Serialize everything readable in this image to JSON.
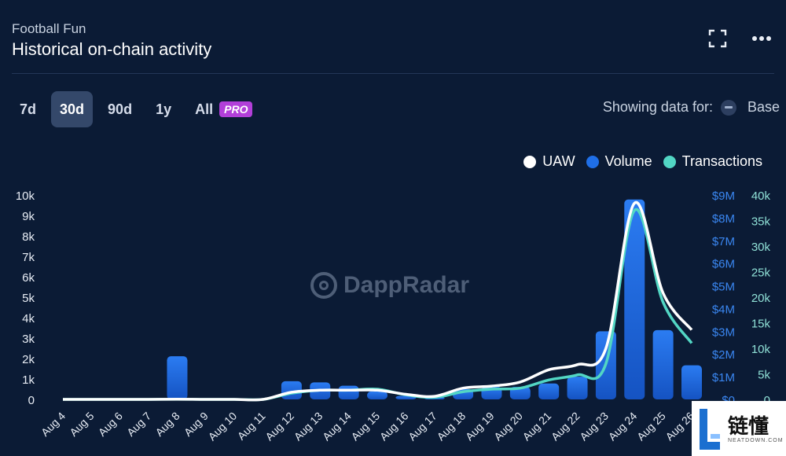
{
  "header": {
    "subtitle": "Football Fun",
    "title": "Historical on-chain activity"
  },
  "toolbar": {
    "icons": [
      "fullscreen-icon",
      "more-icon"
    ]
  },
  "ranges": [
    {
      "label": "7d",
      "active": false
    },
    {
      "label": "30d",
      "active": true
    },
    {
      "label": "90d",
      "active": false
    },
    {
      "label": "1y",
      "active": false
    },
    {
      "label": "All",
      "active": false
    }
  ],
  "pro_badge": "PRO",
  "showing": {
    "label": "Showing data for:",
    "chain": "Base"
  },
  "watermark": "DappRadar",
  "brand": {
    "cn": "链懂",
    "sub": "NEATDOWN.COM"
  },
  "colors": {
    "background": "#0b1b35",
    "uaw": "#ffffff",
    "volume": "#1f6fe8",
    "transactions": "#52d6c4",
    "pro": "#b23fd9"
  },
  "chart_data": {
    "type": "bar",
    "categories": [
      "Aug 4",
      "Aug 5",
      "Aug 6",
      "Aug 7",
      "Aug 8",
      "Aug 9",
      "Aug 10",
      "Aug 11",
      "Aug 12",
      "Aug 13",
      "Aug 14",
      "Aug 15",
      "Aug 16",
      "Aug 17",
      "Aug 18",
      "Aug 19",
      "Aug 20",
      "Aug 21",
      "Aug 22",
      "Aug 23",
      "Aug 24",
      "Aug 25",
      "Aug 26"
    ],
    "series": [
      {
        "name": "UAW",
        "type": "line",
        "axis": "left",
        "color": "#ffffff",
        "values": [
          0,
          0,
          0,
          0,
          10,
          0,
          0,
          0,
          350,
          450,
          450,
          450,
          250,
          150,
          550,
          650,
          850,
          1450,
          1700,
          2500,
          9600,
          5200,
          3400
        ]
      },
      {
        "name": "Volume",
        "type": "bar",
        "axis": "right1",
        "color": "#1f6fe8",
        "values": [
          0,
          0,
          0,
          0,
          1900000,
          0,
          0,
          0,
          800000,
          750000,
          600000,
          350000,
          150000,
          100000,
          450000,
          550000,
          550000,
          700000,
          1000000,
          3000000,
          8800000,
          3050000,
          1500000
        ]
      },
      {
        "name": "Transactions",
        "type": "line",
        "axis": "right2",
        "color": "#52d6c4",
        "values": [
          0,
          0,
          0,
          0,
          20,
          0,
          0,
          0,
          1200,
          1800,
          1800,
          2000,
          900,
          400,
          1500,
          2000,
          2200,
          3800,
          4800,
          7000,
          37000,
          19000,
          11000
        ]
      }
    ],
    "axes": {
      "left": {
        "ticks": [
          "0",
          "1k",
          "2k",
          "3k",
          "4k",
          "5k",
          "6k",
          "7k",
          "8k",
          "9k",
          "10k"
        ],
        "max": 10000
      },
      "right1": {
        "ticks": [
          "$0",
          "$1M",
          "$2M",
          "$3M",
          "$4M",
          "$5M",
          "$6M",
          "$7M",
          "$8M",
          "$9M"
        ],
        "max": 9000000
      },
      "right2": {
        "ticks": [
          "0",
          "5k",
          "10k",
          "15k",
          "20k",
          "25k",
          "30k",
          "35k",
          "40k"
        ],
        "max": 40000
      }
    },
    "legend": [
      "UAW",
      "Volume",
      "Transactions"
    ],
    "legend_position": "top-right",
    "grid": false
  }
}
